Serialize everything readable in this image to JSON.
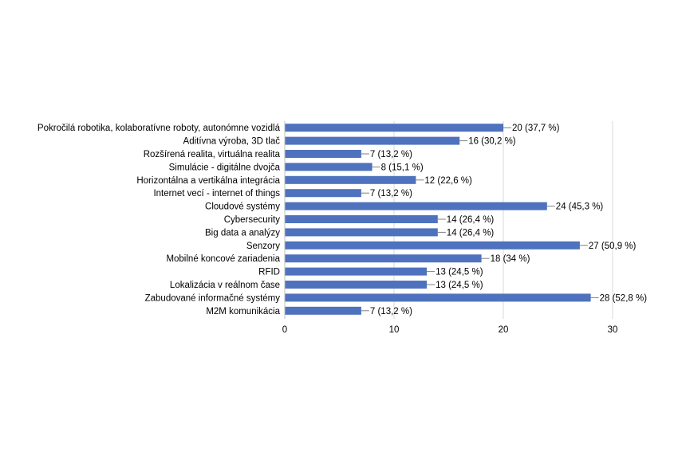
{
  "chart_data": {
    "type": "bar",
    "orientation": "horizontal",
    "categories": [
      "Pokročilá robotika, kolaboratívne roboty, autonómne vozidlá",
      "Aditívna výroba, 3D tlač",
      "Rozšírená realita, virtuálna realita",
      "Simulácie - digitálne dvojča",
      "Horizontálna a vertikálna integrácia",
      "Internet vecí - internet of things",
      "Cloudové systémy",
      "Cybersecurity",
      "Big data a analýzy",
      "Senzory",
      "Mobilné koncové zariadenia",
      "RFID",
      "Lokalizácia v reálnom čase",
      "Zabudované informačné systémy",
      "M2M komunikácia"
    ],
    "values": [
      20,
      16,
      7,
      8,
      12,
      7,
      24,
      14,
      14,
      27,
      18,
      13,
      13,
      28,
      7
    ],
    "data_labels": [
      "20 (37,7 %)",
      "16 (30,2 %)",
      "7 (13,2 %)",
      "8 (15,1 %)",
      "12 (22,6 %)",
      "7 (13,2 %)",
      "24 (45,3 %)",
      "14 (26,4 %)",
      "14 (26,4 %)",
      "27 (50,9 %)",
      "18 (34 %)",
      "13 (24,5 %)",
      "13 (24,5 %)",
      "28 (52,8 %)",
      "7 (13,2 %)"
    ],
    "xlim": [
      0,
      30
    ],
    "x_ticks": [
      "0",
      "10",
      "20",
      "30"
    ],
    "grid": true,
    "bar_color": "#4F72BE",
    "title": "",
    "xlabel": "",
    "ylabel": ""
  }
}
